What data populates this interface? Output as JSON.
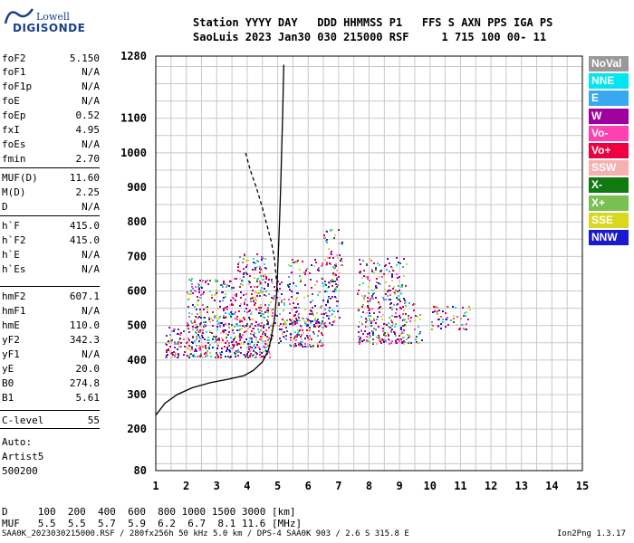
{
  "logo": {
    "top": "Lowell",
    "bottom": "DIGISONDE"
  },
  "header": {
    "line1": "Station YYYY DAY   DDD HHMMSS P1   FFS S AXN PPS IGA PS",
    "line2": "SaoLuis 2023 Jan30 030 215000 RSF     1 715 100 00- 11"
  },
  "params": [
    {
      "name": "foF2",
      "value": "5.150"
    },
    {
      "name": "foF1",
      "value": "N/A"
    },
    {
      "name": "foF1p",
      "value": "N/A"
    },
    {
      "name": "foE",
      "value": "N/A"
    },
    {
      "name": "foEp",
      "value": "0.52"
    },
    {
      "name": "fxI",
      "value": "4.95"
    },
    {
      "name": "foEs",
      "value": "N/A"
    },
    {
      "name": "fmin",
      "value": "2.70"
    },
    {
      "name": "MUF(D)",
      "value": "11.60"
    },
    {
      "name": "M(D)",
      "value": "2.25"
    },
    {
      "name": "D",
      "value": "N/A"
    },
    {
      "name": "h`F",
      "value": "415.0"
    },
    {
      "name": "h`F2",
      "value": "415.0"
    },
    {
      "name": "h`E",
      "value": "N/A"
    },
    {
      "name": "h`Es",
      "value": "N/A"
    },
    {
      "name": "hmF2",
      "value": "607.1"
    },
    {
      "name": "hmF1",
      "value": "N/A"
    },
    {
      "name": "hmE",
      "value": "110.0"
    },
    {
      "name": "yF2",
      "value": "342.3"
    },
    {
      "name": "yF1",
      "value": "N/A"
    },
    {
      "name": "yE",
      "value": "20.0"
    },
    {
      "name": "B0",
      "value": "274.8"
    },
    {
      "name": "B1",
      "value": "5.61"
    },
    {
      "name": "C-level",
      "value": "55"
    }
  ],
  "auto": {
    "line1": "Auto:",
    "line2": "Artist5",
    "line3": "500200"
  },
  "legend": [
    {
      "label": "NoVal",
      "color": "#999999"
    },
    {
      "label": "NNE",
      "color": "#00e5ee"
    },
    {
      "label": "E",
      "color": "#3aa8f0"
    },
    {
      "label": "W",
      "color": "#a000a0"
    },
    {
      "label": "Vo-",
      "color": "#ff40b0"
    },
    {
      "label": "Vo+",
      "color": "#ee0040"
    },
    {
      "label": "SSW",
      "color": "#f5b0b0"
    },
    {
      "label": "X-",
      "color": "#107a10"
    },
    {
      "label": "X+",
      "color": "#78c050"
    },
    {
      "label": "SSE",
      "color": "#d8d820"
    },
    {
      "label": "NNW",
      "color": "#1a1acc"
    }
  ],
  "muf_table": {
    "d_row": "D     100  200  400  600  800 1000 1500 3000 [km]",
    "muf_row": "MUF   5.5  5.5  5.7  5.9  6.2  6.7  8.1 11.6 [MHz]"
  },
  "footer": {
    "left": "SAA0K_2023030215000.RSF / 280fx256h 50 kHz 5.0 km / DPS-4 SAA0K 903 / 2.6 S 315.8 E",
    "right": "Ion2Png 1.3.17"
  },
  "chart_data": {
    "type": "scatter",
    "x_ticks": [
      1,
      2,
      3,
      4,
      5,
      6,
      7,
      8,
      9,
      10,
      11,
      12,
      13,
      14,
      15
    ],
    "xlim": [
      1,
      15
    ],
    "y_ticks": [
      80,
      200,
      300,
      400,
      500,
      600,
      700,
      800,
      900,
      1000,
      1100,
      1280
    ],
    "ylim": [
      80,
      1280
    ],
    "grid": true,
    "traces": [
      {
        "name": "profile",
        "style": "solid",
        "points": [
          [
            1.0,
            240
          ],
          [
            1.3,
            275
          ],
          [
            1.7,
            300
          ],
          [
            2.2,
            320
          ],
          [
            2.8,
            335
          ],
          [
            3.4,
            345
          ],
          [
            3.9,
            355
          ],
          [
            4.2,
            370
          ],
          [
            4.5,
            395
          ],
          [
            4.7,
            430
          ],
          [
            4.8,
            470
          ],
          [
            4.9,
            520
          ],
          [
            4.97,
            600
          ],
          [
            5.02,
            700
          ],
          [
            5.06,
            800
          ],
          [
            5.1,
            900
          ],
          [
            5.13,
            1000
          ],
          [
            5.16,
            1100
          ],
          [
            5.2,
            1255
          ]
        ]
      },
      {
        "name": "extrapolation",
        "style": "dashed",
        "points": [
          [
            3.95,
            1000
          ],
          [
            4.1,
            950
          ],
          [
            4.3,
            900
          ],
          [
            4.5,
            840
          ],
          [
            4.65,
            790
          ],
          [
            4.8,
            740
          ],
          [
            4.9,
            690
          ],
          [
            4.95,
            640
          ],
          [
            5.0,
            600
          ]
        ]
      }
    ],
    "echo_regions": [
      {
        "x": [
          1.3,
          4.8
        ],
        "y": [
          410,
          500
        ],
        "density": 0.9
      },
      {
        "x": [
          2.0,
          5.2
        ],
        "y": [
          500,
          640
        ],
        "density": 0.6
      },
      {
        "x": [
          3.6,
          4.6
        ],
        "y": [
          640,
          710
        ],
        "density": 0.55
      },
      {
        "x": [
          5.0,
          6.5
        ],
        "y": [
          440,
          520
        ],
        "density": 0.8
      },
      {
        "x": [
          5.3,
          7.0
        ],
        "y": [
          500,
          700
        ],
        "density": 0.35
      },
      {
        "x": [
          6.4,
          7.1
        ],
        "y": [
          600,
          780
        ],
        "density": 0.4
      },
      {
        "x": [
          7.6,
          9.2
        ],
        "y": [
          450,
          700
        ],
        "density": 0.55
      },
      {
        "x": [
          9.0,
          9.7
        ],
        "y": [
          450,
          580
        ],
        "density": 0.35
      },
      {
        "x": [
          10.0,
          11.3
        ],
        "y": [
          490,
          560
        ],
        "density": 0.45
      }
    ]
  }
}
